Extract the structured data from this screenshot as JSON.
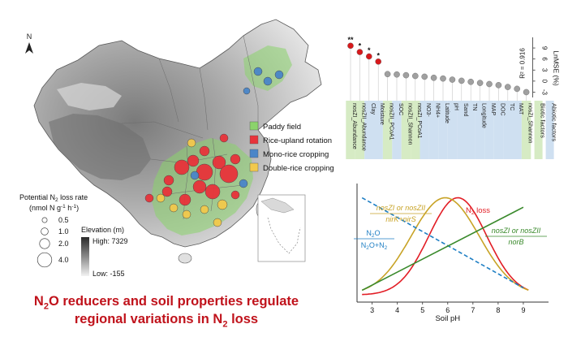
{
  "map": {
    "north_label": "N",
    "legend": [
      {
        "label": "Paddy field",
        "color": "#8bd36b"
      },
      {
        "label": "Rice-upland rotation",
        "color": "#e8333a"
      },
      {
        "label": "Mono-rice cropping",
        "color": "#4a86c8"
      },
      {
        "label": "Double-rice cropping",
        "color": "#f2c94c"
      }
    ],
    "rate_title": "Potential N2 loss rate",
    "rate_title_pre": "Potential N",
    "rate_title_sub": "2",
    "rate_title_post": " loss rate",
    "rate_unit": "(nmol N g-1 h-1)",
    "rate_unit_pre": "(nmol N g",
    "rate_unit_sup1": "-1",
    "rate_unit_mid": " h",
    "rate_unit_sup2": "-1",
    "rate_unit_post": ")",
    "sizes": [
      {
        "label": "0.5",
        "value": 0.5
      },
      {
        "label": "1.0",
        "value": 1.0
      },
      {
        "label": "2.0",
        "value": 2.0
      },
      {
        "label": "4.0",
        "value": 4.0
      }
    ],
    "elevation_title": "Elevation (m)",
    "elevation_high": "High: 7329",
    "elevation_low": "Low: -155"
  },
  "title": {
    "line1_pre": "N",
    "line1_sub": "2",
    "line1_post": "O reducers and soil properties regulate",
    "line2_pre": "regional variations in N",
    "line2_sub": "2",
    "line2_post": " loss"
  },
  "chart_data": [
    {
      "type": "scatter",
      "ylabel": "LnMSE (%)",
      "yticks": [
        "-3",
        "0",
        "3",
        "6",
        "9"
      ],
      "ylim": [
        -4,
        11
      ],
      "r2_label": "R² = 0.916",
      "categories": [
        "nosZI_Abundance",
        "nosZII_Abundance",
        "Clay",
        "Moisture",
        "nosZII_PCoA1",
        "SOC",
        "nosZII_Shannon",
        "nosZI_PCoA1",
        "NO3-",
        "NH4+",
        "Latitude",
        "pH",
        "Sand",
        "TN",
        "Longitude",
        "MAP",
        "DOC",
        "TC",
        "MAT",
        "nosZI_Shannon"
      ],
      "values": [
        9.6,
        7.9,
        6.7,
        5.3,
        1.9,
        1.8,
        1.6,
        1.4,
        1.2,
        0.9,
        0.7,
        0.4,
        0.1,
        -0.2,
        -0.5,
        -0.8,
        -1.1,
        -1.6,
        -2.1,
        -3.0
      ],
      "significance": [
        "**",
        "*",
        "*",
        "*",
        "",
        "",
        "",
        "",
        "",
        "",
        "",
        "",
        "",
        "",
        "",
        "",
        "",
        "",
        "",
        ""
      ],
      "biotic": [
        true,
        true,
        false,
        false,
        true,
        false,
        true,
        true,
        false,
        false,
        false,
        false,
        false,
        false,
        false,
        false,
        false,
        false,
        false,
        true
      ],
      "labels": {
        "l0": "nosZI_Abundance",
        "l1": "nosZII_Abundance",
        "l2": "Clay",
        "l3": "Moisture",
        "l4": "nosZII_PCoA1",
        "l5": "SOC",
        "l6": "nosZII_Shannon",
        "l7": "nosZI_PCoA1",
        "l8": "NO3-",
        "l9": "NH4+",
        "l10": "Latitude",
        "l11": "pH",
        "l12": "Sand",
        "l13": "TN",
        "l14": "Longitude",
        "l15": "MAP",
        "l16": "DOC",
        "l17": "TC",
        "l18": "MAT",
        "l19": "nosZI_Shannon"
      },
      "legend": {
        "biotic": "Biotic factors",
        "abiotic": "Abiotic factors"
      },
      "colors": {
        "significant": "#d7191c",
        "other": "#a0a0a0",
        "biotic_band": "#d6ebc4",
        "abiotic_band": "#cfe0f1"
      }
    },
    {
      "type": "line",
      "xlabel": "Soil pH",
      "xticks": [
        "3",
        "4",
        "5",
        "6",
        "7",
        "8",
        "9"
      ],
      "xlim": [
        2.4,
        10.0
      ],
      "series": [
        {
          "name": "N2 loss",
          "kind": "gaussian",
          "center": 6.4,
          "width": 1.15,
          "color": "#e21d25"
        },
        {
          "name": "nosZI or nosZII / nirK+nirS",
          "kind": "gaussian",
          "center": 5.9,
          "width": 1.35,
          "color": "#c8a326"
        },
        {
          "name": "N2O / N2O+N2",
          "kind": "linear",
          "x": [
            2.6,
            9.0
          ],
          "y": [
            0.88,
            0.12
          ],
          "color": "#1f7fc4",
          "dashed": true
        },
        {
          "name": "nosZI or nosZII / norB",
          "kind": "linear",
          "x": [
            2.6,
            9.0
          ],
          "y": [
            0.1,
            0.8
          ],
          "color": "#3a8a2c"
        }
      ],
      "annotations": {
        "n2loss_pre": "N",
        "n2loss_sub": "2",
        "n2loss_post": " loss",
        "yellow_top": "nosZI or nosZII",
        "yellow_bottom": "nirK+nirS",
        "green_top": "nosZI or nosZII",
        "green_bottom": "norB",
        "blue_top_pre": "N",
        "blue_top_sub": "2",
        "blue_top_post": "O",
        "blue_bot_pre": "N",
        "blue_bot_sub1": "2",
        "blue_bot_mid": "O+N",
        "blue_bot_sub2": "2"
      }
    }
  ]
}
